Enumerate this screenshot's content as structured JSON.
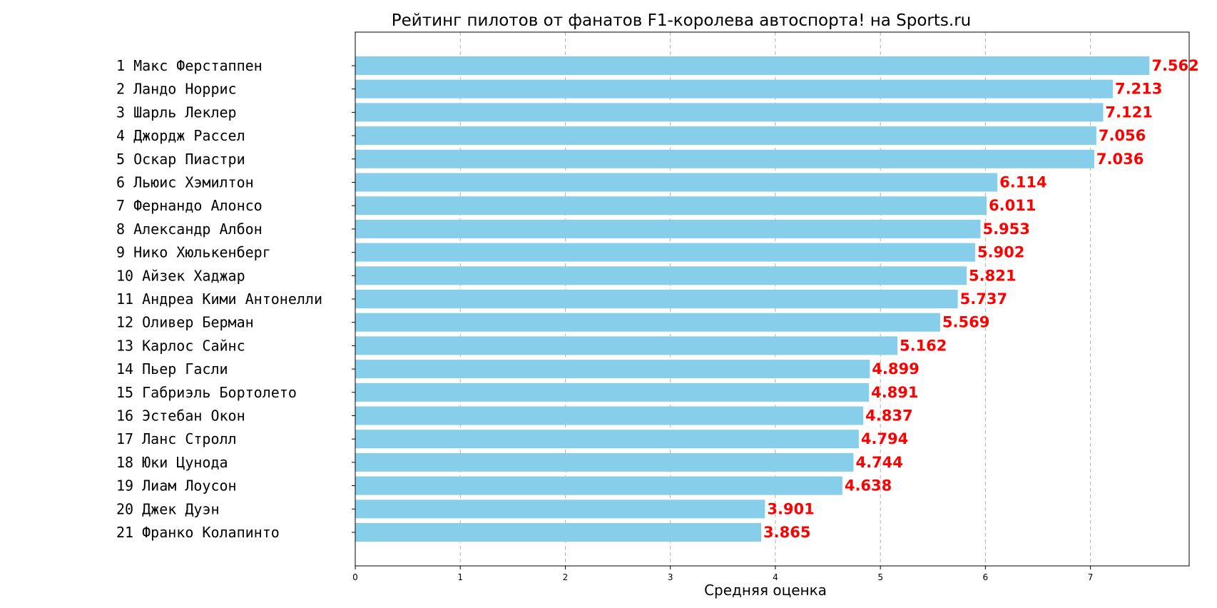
{
  "chart_data": {
    "type": "bar",
    "orientation": "horizontal",
    "title": "Рейтинг пилотов от фанатов F1-королева автоспорта! на Sports.ru",
    "xlabel": "Средняя оценка",
    "ylabel": "",
    "xlim": [
      0,
      7.94
    ],
    "xticks": [
      "0",
      "1",
      "2",
      "3",
      "4",
      "5",
      "6",
      "7"
    ],
    "grid": "x-dashed",
    "bar_color": "#87ceeb",
    "label_color": "#ff0000",
    "categories": [
      "1 Макс Ферстаппен",
      "2 Ландо Норрис",
      "3 Шарль Леклер",
      "4 Джордж Рассел",
      "5 Оскар Пиастри",
      "6 Льюис Хэмилтон",
      "7 Фернандо Алонсо",
      "8 Александр Албон",
      "9 Нико Хюлькенберг",
      "10 Айзек Хаджар",
      "11 Андреа Кими Антонелли",
      "12 Оливер Берман",
      "13 Карлос Сайнс",
      "14 Пьер Гасли",
      "15 Габриэль Бортолето",
      "16 Эстебан Окон",
      "17 Ланс Стролл",
      "18 Юки Цунода",
      "19 Лиам Лоусон",
      "20 Джек Дуэн",
      "21 Франко Колапинто"
    ],
    "values": [
      7.562,
      7.213,
      7.121,
      7.056,
      7.036,
      6.114,
      6.011,
      5.953,
      5.902,
      5.821,
      5.737,
      5.569,
      5.162,
      4.899,
      4.891,
      4.837,
      4.794,
      4.744,
      4.638,
      3.901,
      3.865
    ],
    "value_labels": [
      "7.562",
      "7.213",
      "7.121",
      "7.056",
      "7.036",
      "6.114",
      "6.011",
      "5.953",
      "5.902",
      "5.821",
      "5.737",
      "5.569",
      "5.162",
      "4.899",
      "4.891",
      "4.837",
      "4.794",
      "4.744",
      "4.638",
      "3.901",
      "3.865"
    ]
  }
}
